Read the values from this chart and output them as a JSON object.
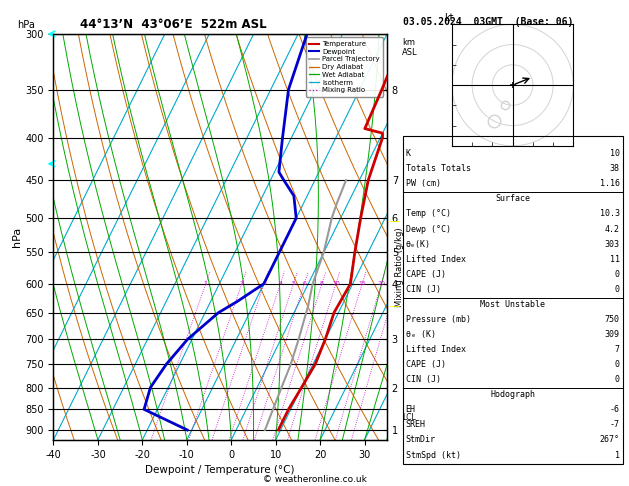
{
  "title_left": "44°13’N  43°06’E  522m ASL",
  "title_right": "03.05.2024  03GMT  (Base: 06)",
  "xlabel": "Dewpoint / Temperature (°C)",
  "footer": "© weatheronline.co.uk",
  "pmin": 300,
  "pmax": 925,
  "tmin": -40,
  "tmax": 35,
  "skew": 40.0,
  "pressure_ticks": [
    300,
    350,
    400,
    450,
    500,
    550,
    600,
    650,
    700,
    750,
    800,
    850,
    900
  ],
  "temp_ticks": [
    -40,
    -30,
    -20,
    -10,
    0,
    10,
    20,
    30
  ],
  "km_asl_ticks": [
    1,
    2,
    3,
    4,
    5,
    6,
    7,
    8
  ],
  "km_asl_pressures": [
    900,
    800,
    700,
    600,
    550,
    500,
    450,
    350
  ],
  "mixing_ratio_values": [
    1,
    2,
    3,
    4,
    5,
    6,
    8,
    10,
    15,
    20,
    25
  ],
  "temperature_profile_p": [
    300,
    350,
    390,
    395,
    400,
    450,
    500,
    550,
    600,
    650,
    700,
    750,
    800,
    850,
    900
  ],
  "temperature_profile_t": [
    -6.0,
    -5.0,
    -4.5,
    0.0,
    0.5,
    2.0,
    4.5,
    7.0,
    9.5,
    9.0,
    10.0,
    10.5,
    10.0,
    9.5,
    9.5
  ],
  "dewpoint_profile_p": [
    300,
    350,
    400,
    440,
    450,
    470,
    500,
    540,
    560,
    600,
    630,
    650,
    700,
    750,
    800,
    850,
    900
  ],
  "dewpoint_profile_t": [
    -28,
    -26,
    -22,
    -19,
    -17,
    -13,
    -10,
    -10,
    -10,
    -10,
    -14,
    -17,
    -21,
    -23,
    -24,
    -23,
    -11
  ],
  "parcel_profile_p": [
    450,
    480,
    500,
    550,
    600,
    640,
    660,
    700,
    750,
    800,
    850,
    900
  ],
  "parcel_profile_t": [
    -3.0,
    -2.5,
    -2.0,
    0.0,
    1.0,
    2.5,
    3.0,
    4.0,
    5.0,
    5.5,
    6.0,
    6.5
  ],
  "lcl_pressure": 870,
  "colors": {
    "temperature": "#cc0000",
    "dewpoint": "#0000cc",
    "parcel": "#999999",
    "dry_adiabat": "#cc6600",
    "wet_adiabat": "#00aa00",
    "isotherm": "#00aacc",
    "mixing_ratio": "#cc00cc",
    "background": "#ffffff",
    "grid": "#000000"
  },
  "K": 10,
  "Totals_Totals": 38,
  "PW_cm": "1.16",
  "Surface_Temp": "10.3",
  "Surface_Dewp": "4.2",
  "Surface_theta_e": 303,
  "Surface_Lifted_Index": 11,
  "Surface_CAPE": 0,
  "Surface_CIN": 0,
  "MU_Pressure": 750,
  "MU_theta_e": 309,
  "MU_Lifted_Index": 7,
  "MU_CAPE": 0,
  "MU_CIN": 0,
  "EH": -6,
  "SREH": -7,
  "StmDir": "267°",
  "StmSpd_kt": 1,
  "wind_barb_pressures": [
    300,
    430
  ],
  "wind_barb_color_top": "#00cccc",
  "wind_barb_color_mid": "#00cccc"
}
